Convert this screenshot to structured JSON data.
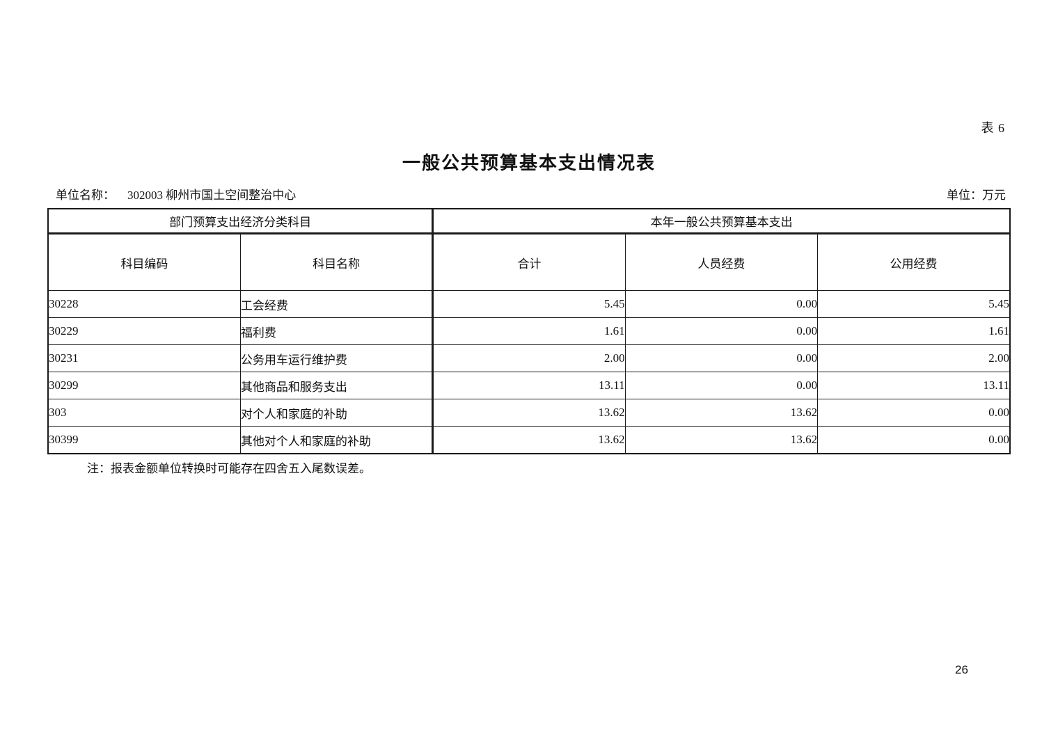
{
  "page": {
    "table_label": "表 6",
    "title": "一般公共预算基本支出情况表",
    "unit_name_label": "单位名称：",
    "unit_name_value": "302003 柳州市国土空间整治中心",
    "currency_unit_label": "单位：万元",
    "note": "注：报表金额单位转换时可能存在四舍五入尾数误差。",
    "page_number": "26"
  },
  "table": {
    "group_headers": {
      "left": "部门预算支出经济分类科目",
      "right": "本年一般公共预算基本支出"
    },
    "columns": [
      "科目编码",
      "科目名称",
      "合计",
      "人员经费",
      "公用经费"
    ],
    "rows": [
      [
        "30228",
        "工会经费",
        "5.45",
        "0.00",
        "5.45"
      ],
      [
        "30229",
        "福利费",
        "1.61",
        "0.00",
        "1.61"
      ],
      [
        "30231",
        "公务用车运行维护费",
        "2.00",
        "0.00",
        "2.00"
      ],
      [
        "30299",
        "其他商品和服务支出",
        "13.11",
        "0.00",
        "13.11"
      ],
      [
        "303",
        "对个人和家庭的补助",
        "13.62",
        "13.62",
        "0.00"
      ],
      [
        "30399",
        "其他对个人和家庭的补助",
        "13.62",
        "13.62",
        "0.00"
      ]
    ]
  }
}
